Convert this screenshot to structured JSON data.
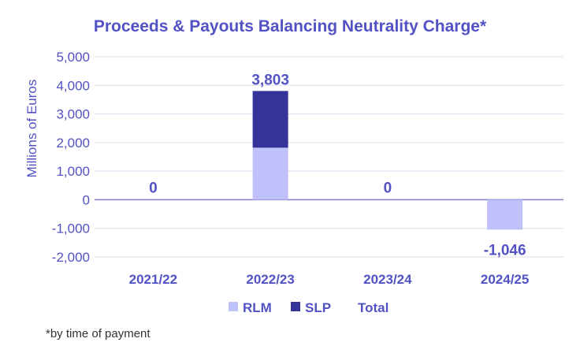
{
  "chart_data": {
    "type": "bar",
    "stacked": true,
    "title": "Proceeds & Payouts Balancing Neutrality Charge*",
    "ylabel": "Millions of Euros",
    "xlabel": "",
    "categories": [
      "2021/22",
      "2022/23",
      "2023/24",
      "2024/25"
    ],
    "series": [
      {
        "name": "RLM",
        "color": "#c0c0fa",
        "values": [
          0,
          1820,
          0,
          -1046
        ]
      },
      {
        "name": "SLP",
        "color": "#333399",
        "values": [
          0,
          1983,
          0,
          0
        ]
      }
    ],
    "totals": {
      "name": "Total",
      "values": [
        0,
        3803,
        0,
        -1046
      ],
      "labels": [
        "0",
        "3,803",
        "0",
        "-1,046"
      ]
    },
    "ylim": [
      -2000,
      5000
    ],
    "yticks": [
      5000,
      4000,
      3000,
      2000,
      1000,
      0,
      -1000,
      -2000
    ],
    "ytick_labels": [
      "5,000",
      "4,000",
      "3,000",
      "2,000",
      "1,000",
      "0",
      "-1,000",
      "-2,000"
    ],
    "grid": true,
    "legend": "bottom",
    "footnote": "*by time of payment"
  }
}
